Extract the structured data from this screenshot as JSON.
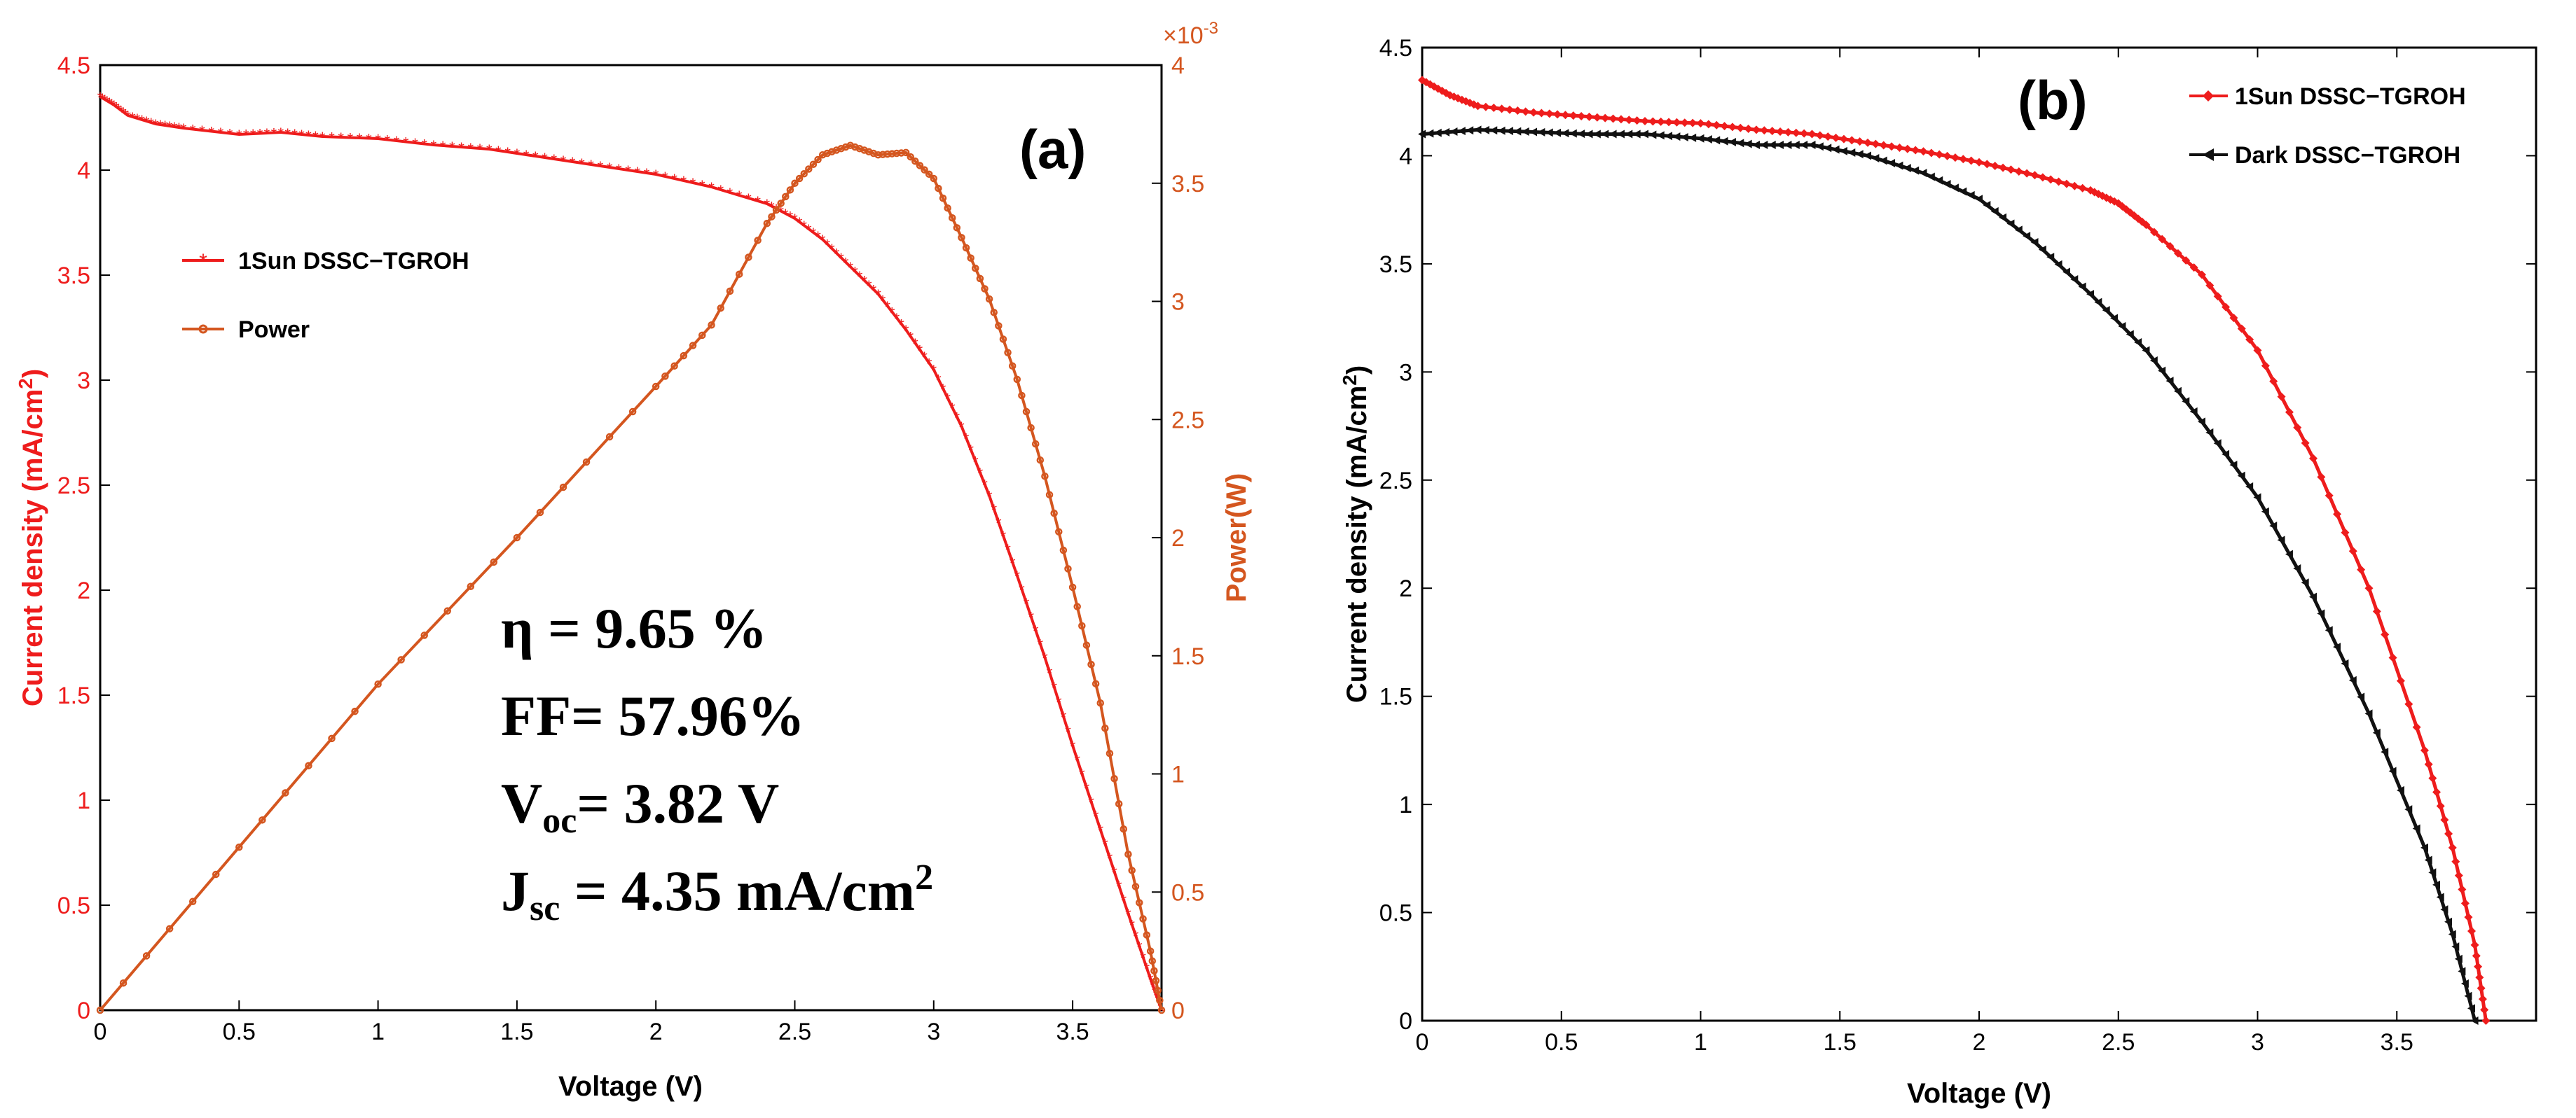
{
  "chart_data": [
    {
      "type": "line",
      "panel_label": "(a)",
      "xlabel": "Voltage (V)",
      "ylabel_left": "Current density (mA/cm2)",
      "ylabel_left_main": "Current density (mA/cm",
      "ylabel_left_sup": "2",
      "ylabel_left_end": ")",
      "ylabel_right": "Power(W)",
      "right_axis_exponent": "×10",
      "right_axis_exponent_power": "-3",
      "xlim": [
        0,
        3.82
      ],
      "ylim_left": [
        0,
        4.5
      ],
      "ylim_right": [
        0,
        4
      ],
      "x_ticks": [
        "0",
        "0.5",
        "1",
        "1.5",
        "2",
        "2.5",
        "3",
        "3.5"
      ],
      "x_tick_values": [
        0,
        0.5,
        1,
        1.5,
        2,
        2.5,
        3,
        3.5
      ],
      "y_left_ticks": [
        "0",
        "0.5",
        "1",
        "1.5",
        "2",
        "2.5",
        "3",
        "3.5",
        "4",
        "4.5"
      ],
      "y_left_tick_values": [
        0,
        0.5,
        1,
        1.5,
        2,
        2.5,
        3,
        3.5,
        4,
        4.5
      ],
      "y_right_ticks": [
        "0",
        "0.5",
        "1",
        "1.5",
        "2",
        "2.5",
        "3",
        "3.5",
        "4"
      ],
      "y_right_tick_values": [
        0,
        0.5,
        1,
        1.5,
        2,
        2.5,
        3,
        3.5,
        4
      ],
      "legend": [
        "1Sun DSSC−TGROH",
        "Power"
      ],
      "series": [
        {
          "name": "1Sun DSSC−TGROH",
          "axis": "left",
          "color": "#ee1c1c",
          "x": [
            0,
            0.05,
            0.1,
            0.2,
            0.3,
            0.5,
            0.65,
            0.8,
            1.0,
            1.2,
            1.4,
            1.6,
            1.8,
            2.0,
            2.2,
            2.4,
            2.5,
            2.6,
            2.7,
            2.8,
            2.9,
            3.0,
            3.1,
            3.2,
            3.3,
            3.4,
            3.5,
            3.6,
            3.7,
            3.78,
            3.82
          ],
          "y": [
            4.35,
            4.31,
            4.26,
            4.22,
            4.2,
            4.17,
            4.18,
            4.16,
            4.15,
            4.12,
            4.1,
            4.06,
            4.02,
            3.98,
            3.92,
            3.84,
            3.77,
            3.67,
            3.54,
            3.41,
            3.24,
            3.05,
            2.78,
            2.45,
            2.07,
            1.68,
            1.26,
            0.86,
            0.46,
            0.15,
            0.0
          ]
        },
        {
          "name": "Power",
          "axis": "right",
          "color": "#d4561f",
          "x": [
            0,
            0.5,
            1.0,
            1.5,
            2.0,
            2.2,
            2.4,
            2.5,
            2.6,
            2.7,
            2.8,
            2.9,
            3.0,
            3.1,
            3.2,
            3.3,
            3.4,
            3.5,
            3.6,
            3.7,
            3.78,
            3.82
          ],
          "y": [
            0,
            0.69,
            1.38,
            2.0,
            2.64,
            2.9,
            3.33,
            3.5,
            3.62,
            3.66,
            3.62,
            3.63,
            3.52,
            3.27,
            3.01,
            2.67,
            2.26,
            1.79,
            1.3,
            0.66,
            0.25,
            0.0
          ]
        }
      ],
      "annotations": [
        {
          "symbol": "η",
          "text": " = 9.65 %"
        },
        {
          "text": "FF=  57.96%"
        },
        {
          "main": "V",
          "sub": "oc",
          "rest": "= 3.82 V"
        },
        {
          "main": "J",
          "sub": "sc",
          "rest": " = 4.35 mA/cm",
          "sup": "2"
        }
      ]
    },
    {
      "type": "line",
      "panel_label": "(b)",
      "xlabel": "Voltage (V)",
      "ylabel": "Current density (mA/cm2)",
      "ylabel_main": "Current density (mA/cm",
      "ylabel_sup": "2",
      "ylabel_end": ")",
      "xlim": [
        0,
        4.0
      ],
      "ylim": [
        0,
        4.5
      ],
      "x_ticks": [
        "0",
        "0.5",
        "1",
        "1.5",
        "2",
        "2.5",
        "3",
        "3.5"
      ],
      "x_tick_values": [
        0,
        0.5,
        1,
        1.5,
        2,
        2.5,
        3,
        3.5
      ],
      "y_ticks": [
        "0",
        "0.5",
        "1",
        "1.5",
        "2",
        "2.5",
        "3",
        "3.5",
        "4",
        "4.5"
      ],
      "y_tick_values": [
        0,
        0.5,
        1,
        1.5,
        2,
        2.5,
        3,
        3.5,
        4,
        4.5
      ],
      "legend": [
        "1Sun DSSC−TGROH",
        "Dark DSSC−TGROH"
      ],
      "series": [
        {
          "name": "1Sun DSSC−TGROH",
          "color": "#ee1c1c",
          "x": [
            0,
            0.1,
            0.2,
            0.4,
            0.6,
            0.8,
            1.0,
            1.2,
            1.4,
            1.6,
            1.8,
            2.0,
            2.2,
            2.4,
            2.5,
            2.6,
            2.8,
            3.0,
            3.2,
            3.4,
            3.6,
            3.7,
            3.78,
            3.82
          ],
          "y": [
            4.35,
            4.28,
            4.23,
            4.2,
            4.18,
            4.16,
            4.15,
            4.12,
            4.1,
            4.06,
            4.02,
            3.97,
            3.91,
            3.84,
            3.78,
            3.68,
            3.45,
            3.1,
            2.6,
            2.0,
            1.25,
            0.8,
            0.35,
            0.0
          ]
        },
        {
          "name": "Dark DSSC−TGROH",
          "color": "#111111",
          "x": [
            0,
            0.2,
            0.4,
            0.6,
            0.8,
            1.0,
            1.2,
            1.4,
            1.6,
            1.8,
            2.0,
            2.2,
            2.4,
            2.6,
            2.8,
            3.0,
            3.2,
            3.4,
            3.6,
            3.7,
            3.78
          ],
          "y": [
            4.1,
            4.12,
            4.11,
            4.1,
            4.1,
            4.08,
            4.05,
            4.05,
            4.0,
            3.92,
            3.8,
            3.6,
            3.36,
            3.1,
            2.77,
            2.42,
            1.96,
            1.42,
            0.8,
            0.4,
            0.0
          ]
        }
      ]
    }
  ]
}
